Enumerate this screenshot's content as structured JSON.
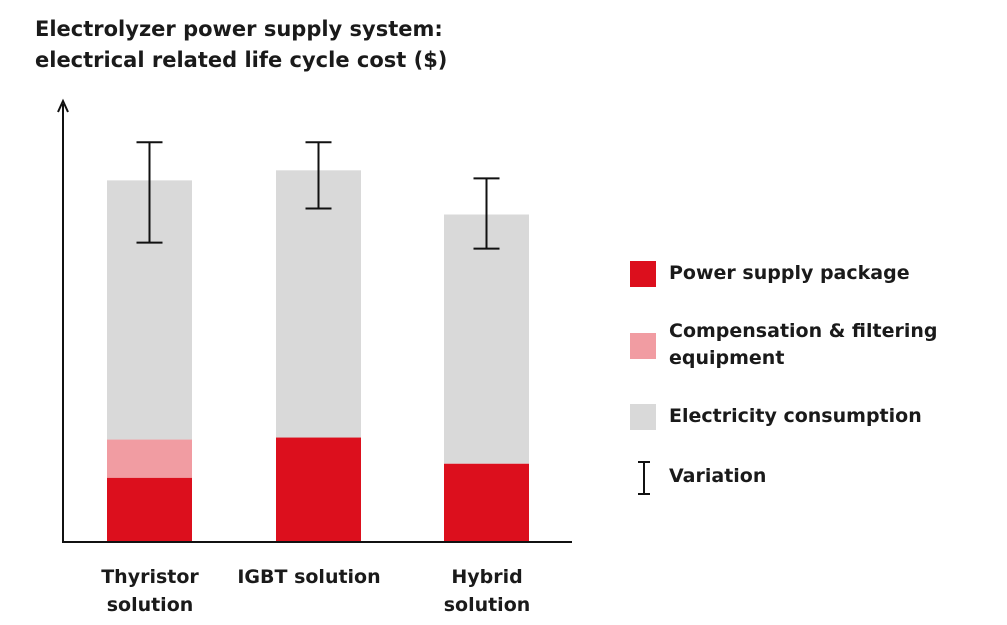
{
  "chart_data": {
    "type": "bar",
    "stacked": true,
    "title_lines": [
      "Electrolyzer power supply system:",
      "electrical related life cycle cost ($)"
    ],
    "xlabel": "",
    "ylabel": "",
    "ylim": [
      0,
      110
    ],
    "y_ticks_shown": false,
    "grid": false,
    "categories": [
      "Thyristor solution",
      "IGBT solution",
      "Hybrid solution"
    ],
    "category_lines": [
      [
        "Thyristor",
        "solution"
      ],
      [
        "IGBT solution"
      ],
      [
        "Hybrid",
        "solution"
      ]
    ],
    "series": [
      {
        "name": "Power supply package",
        "color": "#dc0f1d",
        "values": [
          16,
          26,
          19.5
        ]
      },
      {
        "name": "Compensation & filtering equipment",
        "color": "#f19ca2",
        "values": [
          9.5,
          0,
          0
        ]
      },
      {
        "name": "Electricity consumption",
        "color": "#d9d9d9",
        "values": [
          64.5,
          66.5,
          62
        ]
      }
    ],
    "variation": {
      "name": "Variation",
      "ranges": [
        [
          74.5,
          99.5
        ],
        [
          83,
          99.5
        ],
        [
          73,
          90.5
        ]
      ]
    },
    "legend": {
      "placement": "right",
      "labels": [
        "Power supply package",
        "Compensation & filtering equipment",
        "Electricity consumption",
        "Variation"
      ],
      "label_lines": [
        [
          "Power supply package"
        ],
        [
          "Compensation & filtering",
          "equipment"
        ],
        [
          "Electricity consumption"
        ],
        [
          "Variation"
        ]
      ]
    }
  }
}
